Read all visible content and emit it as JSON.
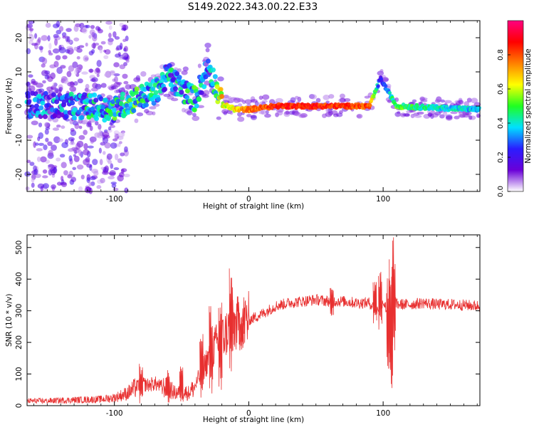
{
  "chart_data": [
    {
      "type": "heatmap",
      "title": "S149.2022.343.00.22.E33",
      "xlabel": "Height of straight line (km)",
      "ylabel": "Frequency (Hz)",
      "xlim": [
        -165,
        172
      ],
      "ylim": [
        -25,
        25
      ],
      "xticks": [
        -100,
        0,
        100
      ],
      "yticks": [
        -20,
        -10,
        0,
        10,
        20
      ],
      "colorbar": {
        "label": "Normalized spectral amplitude",
        "range": [
          0.0,
          1.0
        ],
        "ticks": [
          "0.0",
          "0.2",
          "0.4",
          "0.6",
          "0.8"
        ],
        "colors": [
          "#ffffff",
          "#6a00d8",
          "#2a1dff",
          "#00e0ff",
          "#20ff20",
          "#ffff00",
          "#ff8000",
          "#ff0000",
          "#ff0080"
        ]
      },
      "ridge": [
        {
          "x": -165,
          "freq": 0.5,
          "amp": 0.25
        },
        {
          "x": -140,
          "freq": 0.0,
          "amp": 0.25
        },
        {
          "x": -120,
          "freq": 0.0,
          "amp": 0.35
        },
        {
          "x": -100,
          "freq": -1.0,
          "amp": 0.4
        },
        {
          "x": -85,
          "freq": 2.0,
          "amp": 0.4
        },
        {
          "x": -70,
          "freq": 4.0,
          "amp": 0.35
        },
        {
          "x": -60,
          "freq": 9.0,
          "amp": 0.3
        },
        {
          "x": -50,
          "freq": 5.0,
          "amp": 0.35
        },
        {
          "x": -40,
          "freq": 2.0,
          "amp": 0.4
        },
        {
          "x": -30,
          "freq": 12.0,
          "amp": 0.2
        },
        {
          "x": -20,
          "freq": 0.5,
          "amp": 0.6
        },
        {
          "x": -10,
          "freq": -1.0,
          "amp": 0.65
        },
        {
          "x": 0,
          "freq": -1.0,
          "amp": 0.75
        },
        {
          "x": 20,
          "freq": 0.0,
          "amp": 0.85
        },
        {
          "x": 50,
          "freq": 0.0,
          "amp": 0.85
        },
        {
          "x": 90,
          "freq": 0.0,
          "amp": 0.8
        },
        {
          "x": 98,
          "freq": 8.0,
          "amp": 0.2
        },
        {
          "x": 110,
          "freq": 0.0,
          "amp": 0.5
        },
        {
          "x": 140,
          "freq": -0.5,
          "amp": 0.4
        },
        {
          "x": 172,
          "freq": -1.0,
          "amp": 0.35
        }
      ]
    },
    {
      "type": "line",
      "xlabel": "Height of straight line (km)",
      "ylabel": "SNR (10 * v/v)",
      "xlim": [
        -165,
        172
      ],
      "ylim": [
        0,
        540
      ],
      "xticks": [
        -100,
        0,
        100
      ],
      "yticks": [
        0,
        100,
        200,
        300,
        400,
        500
      ],
      "color": "#e83030",
      "x": [
        -165,
        -150,
        -130,
        -110,
        -100,
        -90,
        -85,
        -80,
        -75,
        -70,
        -65,
        -60,
        -55,
        -50,
        -45,
        -40,
        -35,
        -30,
        -25,
        -20,
        -15,
        -10,
        -5,
        0,
        10,
        20,
        30,
        40,
        50,
        60,
        70,
        80,
        90,
        95,
        100,
        103,
        105,
        107,
        108,
        110,
        120,
        130,
        140,
        150,
        160,
        172
      ],
      "values": [
        15,
        15,
        18,
        20,
        25,
        40,
        55,
        70,
        65,
        70,
        60,
        55,
        40,
        45,
        40,
        60,
        110,
        150,
        190,
        210,
        240,
        255,
        265,
        270,
        290,
        315,
        325,
        330,
        335,
        330,
        330,
        325,
        325,
        300,
        330,
        300,
        240,
        180,
        360,
        320,
        320,
        325,
        320,
        320,
        318,
        315
      ],
      "spikes": [
        {
          "x": -80,
          "low": 5,
          "high": 135
        },
        {
          "x": -60,
          "low": 10,
          "high": 120
        },
        {
          "x": -50,
          "low": 5,
          "high": 145
        },
        {
          "x": -35,
          "low": 15,
          "high": 230
        },
        {
          "x": -28,
          "low": 20,
          "high": 320
        },
        {
          "x": -21,
          "low": 30,
          "high": 370
        },
        {
          "x": -13,
          "low": 80,
          "high": 435
        },
        {
          "x": -5,
          "low": 180,
          "high": 285
        },
        {
          "x": 62,
          "low": 280,
          "high": 385
        },
        {
          "x": 94,
          "low": 250,
          "high": 400
        },
        {
          "x": 98,
          "low": 230,
          "high": 430
        },
        {
          "x": 104,
          "low": 80,
          "high": 440
        },
        {
          "x": 106,
          "low": 40,
          "high": 465
        },
        {
          "x": 108,
          "low": 120,
          "high": 540
        }
      ]
    }
  ]
}
